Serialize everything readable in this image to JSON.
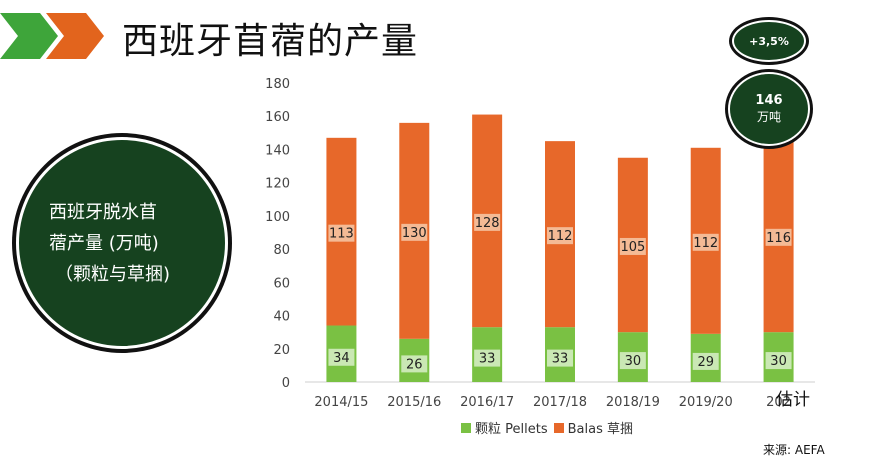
{
  "title": "西班牙苜蓿的产量",
  "left_circle": {
    "line1": "西班牙脱水苜",
    "line2": "蓿产量 (万吨)",
    "line3": "（颗粒与草捆)"
  },
  "badges": {
    "growth": "+3,5%",
    "total_value": "146",
    "total_unit": "万吨"
  },
  "estimate_label": "估计",
  "source": "来源: AEFA",
  "colors": {
    "pellets": "#7ac143",
    "balas": "#e7682a",
    "circle_fill": "#16421f",
    "chevron_green": "#3ea53a",
    "chevron_orange": "#e2641d"
  },
  "chart_data": {
    "type": "bar",
    "stacked": true,
    "categories": [
      "2014/15",
      "2015/16",
      "2016/17",
      "2017/18",
      "2018/19",
      "2019/20",
      "202"
    ],
    "series": [
      {
        "name": "颗粒 Pellets",
        "values": [
          34,
          26,
          33,
          33,
          30,
          29,
          30
        ]
      },
      {
        "name": "Balas 草捆",
        "values": [
          113,
          130,
          128,
          112,
          105,
          112,
          116
        ]
      }
    ],
    "ylim": [
      0,
      180
    ],
    "yticks": [
      "0",
      "20",
      "40",
      "60",
      "80",
      "100",
      "120",
      "140",
      "160",
      "180"
    ],
    "grid": false,
    "legend": "bottom"
  }
}
